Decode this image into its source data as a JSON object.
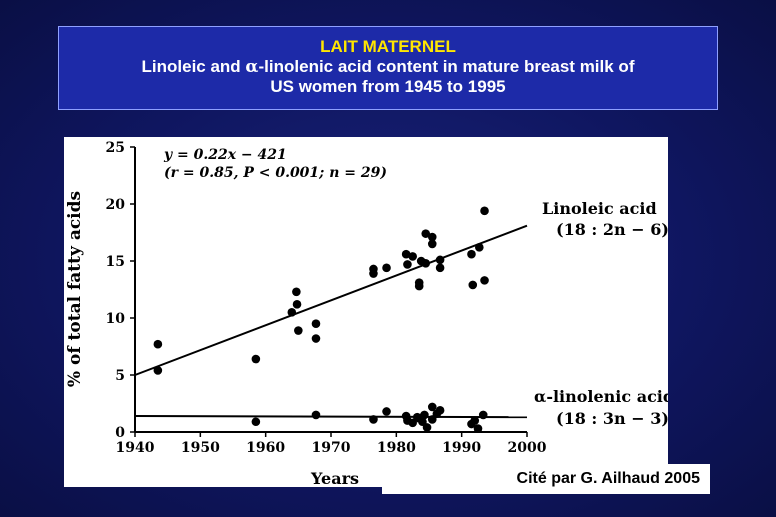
{
  "header": {
    "kicker": "LAIT MATERNEL",
    "line1_prefix": "Linoleic and ",
    "alpha_symbol": "α",
    "line1_suffix": "-linolenic acid content in mature breast milk of",
    "line2": "US women from 1945 to 1995"
  },
  "citation": "Cité par G. Ailhaud 2005",
  "chart_data": {
    "type": "scatter",
    "title": "",
    "xlabel": "Years",
    "ylabel": "% of total fatty acids",
    "xlim": [
      1940,
      2000
    ],
    "ylim": [
      0,
      25
    ],
    "x_ticks": [
      1940,
      1950,
      1960,
      1970,
      1980,
      1990,
      2000
    ],
    "y_ticks": [
      0,
      5,
      10,
      15,
      20,
      25
    ],
    "grid": false,
    "regression": {
      "equation": "y = 0.22x − 421",
      "stats": "(r = 0.85, P < 0.001; n = 29)"
    },
    "series": [
      {
        "name": "Linoleic acid",
        "label_line2": "(18 : 2n − 6)",
        "trendline": [
          [
            1940,
            5.0
          ],
          [
            2000,
            18.1
          ]
        ],
        "x": [
          1943.5,
          1943.5,
          1958.5,
          1964,
          1964.7,
          1964.8,
          1965,
          1967.7,
          1967.7,
          1976.5,
          1976.5,
          1978.5,
          1981.5,
          1981.7,
          1982.5,
          1983.5,
          1983.5,
          1983.8,
          1984.5,
          1984.5,
          1985.5,
          1985.5,
          1986.7,
          1986.7,
          1991.5,
          1991.7,
          1992.7,
          1993.5,
          1993.5
        ],
        "y": [
          7.7,
          5.4,
          6.4,
          10.5,
          12.3,
          11.2,
          8.9,
          9.5,
          8.2,
          14.3,
          13.9,
          14.4,
          15.6,
          14.7,
          15.4,
          13.1,
          12.8,
          15.0,
          17.4,
          14.8,
          17.1,
          16.5,
          15.1,
          14.4,
          15.6,
          12.9,
          16.2,
          19.4,
          13.3
        ],
        "color": "#000000"
      },
      {
        "name": "α-linolenic acid",
        "label_line2": "(18 : 3n − 3)",
        "trendline": [
          [
            1940,
            1.4
          ],
          [
            2000,
            1.3
          ]
        ],
        "x": [
          1958.5,
          1967.7,
          1976.5,
          1978.5,
          1981.5,
          1981.7,
          1982.5,
          1983.2,
          1983.5,
          1984,
          1984.3,
          1984.7,
          1985.5,
          1985.5,
          1986.2,
          1986.7,
          1991.5,
          1992,
          1992.5,
          1993.3
        ],
        "y": [
          0.9,
          1.5,
          1.1,
          1.8,
          1.4,
          1.0,
          0.8,
          1.3,
          1.2,
          0.9,
          1.5,
          0.4,
          2.2,
          1.1,
          1.6,
          1.9,
          0.7,
          1.0,
          0.3,
          1.5
        ],
        "color": "#000000"
      }
    ]
  }
}
